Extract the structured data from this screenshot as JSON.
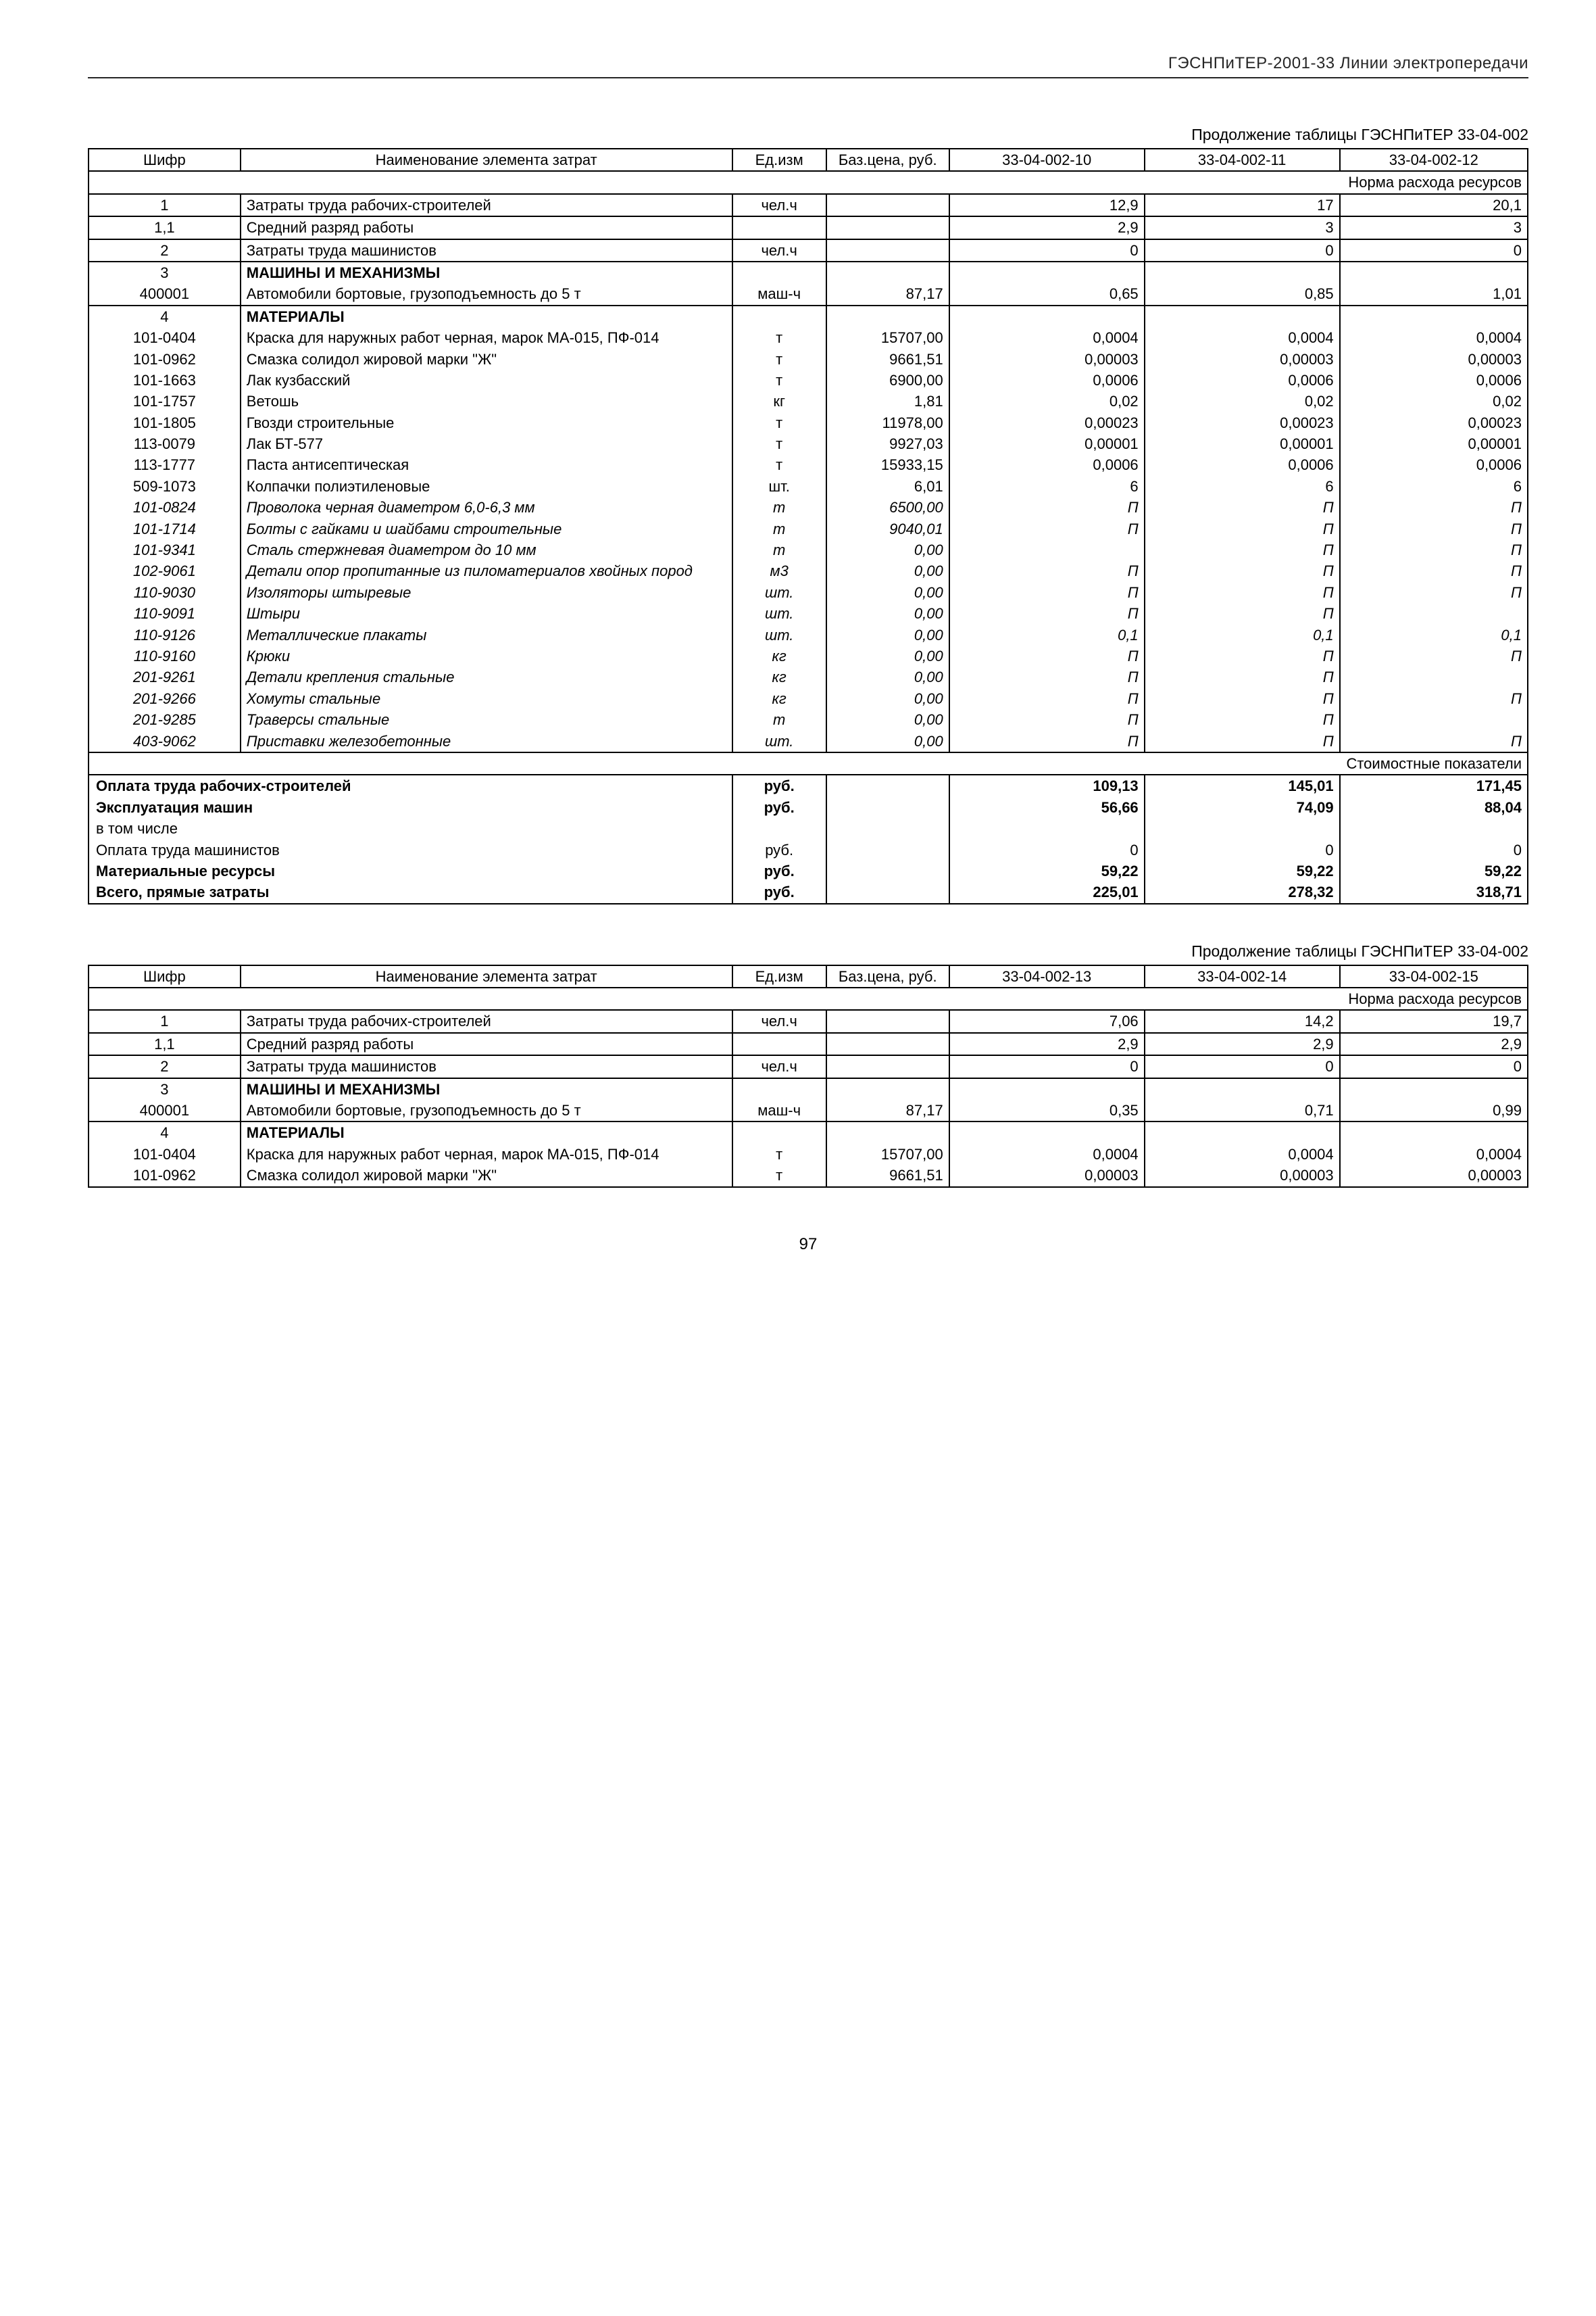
{
  "header": "ГЭСНПиТЕР-2001-33 Линии электропередачи",
  "page_number": "97",
  "table1": {
    "caption": "Продолжение таблицы ГЭСНПиТЕР 33-04-002",
    "columns": {
      "shifr": "Шифр",
      "name": "Наименование элемента затрат",
      "unit": "Ед.изм",
      "base": "Баз.цена, руб.",
      "v1": "33-04-002-10",
      "v2": "33-04-002-11",
      "v3": "33-04-002-12"
    },
    "sub_norma": "Норма расхода ресурсов",
    "rows": [
      {
        "shifr": "1",
        "name": "Затраты труда рабочих-строителей",
        "unit": "чел.ч",
        "base": "",
        "v1": "12,9",
        "v2": "17",
        "v3": "20,1"
      },
      {
        "shifr": "1,1",
        "name": "Средний разряд работы",
        "unit": "",
        "base": "",
        "v1": "2,9",
        "v2": "3",
        "v3": "3"
      },
      {
        "shifr": "2",
        "name": "Затраты труда машинистов",
        "unit": "чел.ч",
        "base": "",
        "v1": "0",
        "v2": "0",
        "v3": "0"
      },
      {
        "shifr": "3",
        "name": "МАШИНЫ И МЕХАНИЗМЫ",
        "unit": "",
        "base": "",
        "v1": "",
        "v2": "",
        "v3": "",
        "section": true,
        "nobot": true
      },
      {
        "shifr": "400001",
        "name": "Автомобили бортовые, грузоподъемность до 5 т",
        "unit": "маш-ч",
        "base": "87,17",
        "v1": "0,65",
        "v2": "0,85",
        "v3": "1,01",
        "notop": true
      },
      {
        "shifr": "4",
        "name": "МАТЕРИАЛЫ",
        "unit": "",
        "base": "",
        "v1": "",
        "v2": "",
        "v3": "",
        "section": true,
        "nobot": true
      },
      {
        "shifr": "101-0404",
        "name": "Краска для наружных работ черная, марок МА-015, ПФ-014",
        "unit": "т",
        "base": "15707,00",
        "v1": "0,0004",
        "v2": "0,0004",
        "v3": "0,0004",
        "notop": true,
        "nobot": true
      },
      {
        "shifr": "101-0962",
        "name": "Смазка солидол жировой марки \"Ж\"",
        "unit": "т",
        "base": "9661,51",
        "v1": "0,00003",
        "v2": "0,00003",
        "v3": "0,00003",
        "notop": true,
        "nobot": true
      },
      {
        "shifr": "101-1663",
        "name": "Лак кузбасский",
        "unit": "т",
        "base": "6900,00",
        "v1": "0,0006",
        "v2": "0,0006",
        "v3": "0,0006",
        "notop": true,
        "nobot": true
      },
      {
        "shifr": "101-1757",
        "name": "Ветошь",
        "unit": "кг",
        "base": "1,81",
        "v1": "0,02",
        "v2": "0,02",
        "v3": "0,02",
        "notop": true,
        "nobot": true
      },
      {
        "shifr": "101-1805",
        "name": "Гвозди строительные",
        "unit": "т",
        "base": "11978,00",
        "v1": "0,00023",
        "v2": "0,00023",
        "v3": "0,00023",
        "notop": true,
        "nobot": true
      },
      {
        "shifr": "113-0079",
        "name": "Лак БТ-577",
        "unit": "т",
        "base": "9927,03",
        "v1": "0,00001",
        "v2": "0,00001",
        "v3": "0,00001",
        "notop": true,
        "nobot": true
      },
      {
        "shifr": "113-1777",
        "name": "Паста антисептическая",
        "unit": "т",
        "base": "15933,15",
        "v1": "0,0006",
        "v2": "0,0006",
        "v3": "0,0006",
        "notop": true,
        "nobot": true
      },
      {
        "shifr": "509-1073",
        "name": "Колпачки полиэтиленовые",
        "unit": "шт.",
        "base": "6,01",
        "v1": "6",
        "v2": "6",
        "v3": "6",
        "notop": true,
        "nobot": true
      },
      {
        "shifr": "101-0824",
        "name": "Проволока черная диаметром 6,0-6,3 мм",
        "unit": "т",
        "base": "6500,00",
        "v1": "П",
        "v2": "П",
        "v3": "П",
        "italic": true,
        "notop": true,
        "nobot": true
      },
      {
        "shifr": "101-1714",
        "name": "Болты с гайками и шайбами строительные",
        "unit": "т",
        "base": "9040,01",
        "v1": "П",
        "v2": "П",
        "v3": "П",
        "italic": true,
        "notop": true,
        "nobot": true
      },
      {
        "shifr": "101-9341",
        "name": "Сталь стержневая диаметром до 10 мм",
        "unit": "т",
        "base": "0,00",
        "v1": "",
        "v2": "П",
        "v3": "П",
        "italic": true,
        "notop": true,
        "nobot": true
      },
      {
        "shifr": "102-9061",
        "name": "Детали опор пропитанные из пиломатериалов хвойных пород",
        "unit": "м3",
        "base": "0,00",
        "v1": "П",
        "v2": "П",
        "v3": "П",
        "italic": true,
        "notop": true,
        "nobot": true
      },
      {
        "shifr": "110-9030",
        "name": "Изоляторы штыревые",
        "unit": "шт.",
        "base": "0,00",
        "v1": "П",
        "v2": "П",
        "v3": "П",
        "italic": true,
        "notop": true,
        "nobot": true
      },
      {
        "shifr": "110-9091",
        "name": "Штыри",
        "unit": "шт.",
        "base": "0,00",
        "v1": "П",
        "v2": "П",
        "v3": "",
        "italic": true,
        "notop": true,
        "nobot": true
      },
      {
        "shifr": "110-9126",
        "name": "Металлические плакаты",
        "unit": "шт.",
        "base": "0,00",
        "v1": "0,1",
        "v2": "0,1",
        "v3": "0,1",
        "italic": true,
        "notop": true,
        "nobot": true
      },
      {
        "shifr": "110-9160",
        "name": "Крюки",
        "unit": "кг",
        "base": "0,00",
        "v1": "П",
        "v2": "П",
        "v3": "П",
        "italic": true,
        "notop": true,
        "nobot": true
      },
      {
        "shifr": "201-9261",
        "name": "Детали крепления стальные",
        "unit": "кг",
        "base": "0,00",
        "v1": "П",
        "v2": "П",
        "v3": "",
        "italic": true,
        "notop": true,
        "nobot": true
      },
      {
        "shifr": "201-9266",
        "name": "Хомуты стальные",
        "unit": "кг",
        "base": "0,00",
        "v1": "П",
        "v2": "П",
        "v3": "П",
        "italic": true,
        "notop": true,
        "nobot": true
      },
      {
        "shifr": "201-9285",
        "name": "Траверсы стальные",
        "unit": "т",
        "base": "0,00",
        "v1": "П",
        "v2": "П",
        "v3": "",
        "italic": true,
        "notop": true,
        "nobot": true
      },
      {
        "shifr": "403-9062",
        "name": "Приставки железобетонные",
        "unit": "шт.",
        "base": "0,00",
        "v1": "П",
        "v2": "П",
        "v3": "П",
        "italic": true,
        "notop": true
      }
    ],
    "sub_cost": "Стоимостные показатели",
    "cost_rows": [
      {
        "name": "Оплата труда рабочих-строителей",
        "unit": "руб.",
        "v1": "109,13",
        "v2": "145,01",
        "v3": "171,45",
        "bold": true,
        "nobot": true
      },
      {
        "name": "Эксплуатация машин",
        "unit": "руб.",
        "v1": "56,66",
        "v2": "74,09",
        "v3": "88,04",
        "bold": true,
        "notop": true,
        "nobot": true
      },
      {
        "name": "в том числе",
        "unit": "",
        "v1": "",
        "v2": "",
        "v3": "",
        "notop": true,
        "nobot": true
      },
      {
        "name": "Оплата труда машинистов",
        "unit": "руб.",
        "v1": "0",
        "v2": "0",
        "v3": "0",
        "notop": true,
        "nobot": true
      },
      {
        "name": "Материальные ресурсы",
        "unit": "руб.",
        "v1": "59,22",
        "v2": "59,22",
        "v3": "59,22",
        "bold": true,
        "notop": true,
        "nobot": true
      },
      {
        "name": "Всего, прямые затраты",
        "unit": "руб.",
        "v1": "225,01",
        "v2": "278,32",
        "v3": "318,71",
        "bold": true,
        "notop": true
      }
    ]
  },
  "table2": {
    "caption": "Продолжение таблицы ГЭСНПиТЕР 33-04-002",
    "columns": {
      "shifr": "Шифр",
      "name": "Наименование элемента затрат",
      "unit": "Ед.изм",
      "base": "Баз.цена, руб.",
      "v1": "33-04-002-13",
      "v2": "33-04-002-14",
      "v3": "33-04-002-15"
    },
    "sub_norma": "Норма расхода ресурсов",
    "rows": [
      {
        "shifr": "1",
        "name": "Затраты труда рабочих-строителей",
        "unit": "чел.ч",
        "base": "",
        "v1": "7,06",
        "v2": "14,2",
        "v3": "19,7"
      },
      {
        "shifr": "1,1",
        "name": "Средний разряд работы",
        "unit": "",
        "base": "",
        "v1": "2,9",
        "v2": "2,9",
        "v3": "2,9"
      },
      {
        "shifr": "2",
        "name": "Затраты труда машинистов",
        "unit": "чел.ч",
        "base": "",
        "v1": "0",
        "v2": "0",
        "v3": "0"
      },
      {
        "shifr": "3",
        "name": "МАШИНЫ И МЕХАНИЗМЫ",
        "unit": "",
        "base": "",
        "v1": "",
        "v2": "",
        "v3": "",
        "section": true,
        "nobot": true
      },
      {
        "shifr": "400001",
        "name": "Автомобили бортовые, грузоподъемность до 5 т",
        "unit": "маш-ч",
        "base": "87,17",
        "v1": "0,35",
        "v2": "0,71",
        "v3": "0,99",
        "notop": true
      },
      {
        "shifr": "4",
        "name": "МАТЕРИАЛЫ",
        "unit": "",
        "base": "",
        "v1": "",
        "v2": "",
        "v3": "",
        "section": true,
        "nobot": true
      },
      {
        "shifr": "101-0404",
        "name": "Краска для наружных работ черная, марок МА-015, ПФ-014",
        "unit": "т",
        "base": "15707,00",
        "v1": "0,0004",
        "v2": "0,0004",
        "v3": "0,0004",
        "notop": true,
        "nobot": true
      },
      {
        "shifr": "101-0962",
        "name": "Смазка солидол жировой марки \"Ж\"",
        "unit": "т",
        "base": "9661,51",
        "v1": "0,00003",
        "v2": "0,00003",
        "v3": "0,00003",
        "notop": true
      }
    ]
  }
}
